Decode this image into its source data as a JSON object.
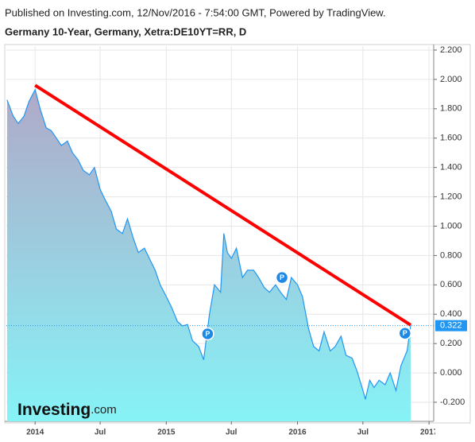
{
  "header": "Published on Investing.com, 12/Nov/2016 - 7:54:00 GMT, Powered by TradingView.",
  "chart_data": {
    "type": "area",
    "title": "Germany 10-Year, Germany, Xetra:DE10YT=RR, D",
    "color": "#2196f3",
    "x": [
      "2013-10-15",
      "2013-11-01",
      "2013-11-15",
      "2013-12-01",
      "2013-12-15",
      "2014-01-01",
      "2014-01-15",
      "2014-02-01",
      "2014-02-15",
      "2014-03-01",
      "2014-03-15",
      "2014-04-01",
      "2014-04-15",
      "2014-05-01",
      "2014-05-15",
      "2014-06-01",
      "2014-06-15",
      "2014-07-01",
      "2014-07-15",
      "2014-08-01",
      "2014-08-15",
      "2014-09-01",
      "2014-09-15",
      "2014-10-01",
      "2014-10-15",
      "2014-11-01",
      "2014-11-15",
      "2014-12-01",
      "2014-12-15",
      "2015-01-01",
      "2015-01-15",
      "2015-02-01",
      "2015-02-15",
      "2015-03-01",
      "2015-03-15",
      "2015-04-01",
      "2015-04-15",
      "2015-05-01",
      "2015-05-15",
      "2015-06-01",
      "2015-06-10",
      "2015-06-20",
      "2015-07-01",
      "2015-07-15",
      "2015-08-01",
      "2015-08-15",
      "2015-09-01",
      "2015-09-15",
      "2015-10-01",
      "2015-10-15",
      "2015-11-01",
      "2015-11-15",
      "2015-12-01",
      "2015-12-15",
      "2016-01-01",
      "2016-01-15",
      "2016-02-01",
      "2016-02-15",
      "2016-03-01",
      "2016-03-15",
      "2016-04-01",
      "2016-04-15",
      "2016-05-01",
      "2016-05-15",
      "2016-06-01",
      "2016-06-15",
      "2016-07-01",
      "2016-07-08",
      "2016-07-20",
      "2016-08-01",
      "2016-08-15",
      "2016-09-01",
      "2016-09-15",
      "2016-10-01",
      "2016-10-15",
      "2016-11-01",
      "2016-11-11"
    ],
    "values": [
      1.86,
      1.75,
      1.7,
      1.75,
      1.85,
      1.93,
      1.8,
      1.67,
      1.65,
      1.6,
      1.55,
      1.58,
      1.5,
      1.45,
      1.38,
      1.35,
      1.4,
      1.25,
      1.18,
      1.1,
      0.98,
      0.95,
      1.05,
      0.92,
      0.82,
      0.85,
      0.78,
      0.7,
      0.6,
      0.52,
      0.45,
      0.35,
      0.32,
      0.33,
      0.22,
      0.18,
      0.09,
      0.4,
      0.6,
      0.55,
      0.95,
      0.82,
      0.78,
      0.85,
      0.65,
      0.7,
      0.7,
      0.65,
      0.58,
      0.55,
      0.6,
      0.55,
      0.5,
      0.65,
      0.6,
      0.52,
      0.3,
      0.18,
      0.15,
      0.28,
      0.15,
      0.18,
      0.25,
      0.12,
      0.1,
      0.01,
      -0.12,
      -0.18,
      -0.05,
      -0.1,
      -0.05,
      -0.08,
      0.0,
      -0.12,
      0.05,
      0.15,
      0.322
    ],
    "xlim": [
      "2013-10-13",
      "2017-01-14"
    ],
    "xticks": [
      {
        "value": "2014-01-01",
        "label": "2014"
      },
      {
        "value": "2014-07-01",
        "label": "Jul"
      },
      {
        "value": "2015-01-01",
        "label": "2015"
      },
      {
        "value": "2015-07-01",
        "label": "Jul"
      },
      {
        "value": "2016-01-01",
        "label": "2016"
      },
      {
        "value": "2016-07-01",
        "label": "Jul"
      },
      {
        "value": "2017-01-01",
        "label": "2017"
      }
    ],
    "ylim": [
      -0.33,
      2.227
    ],
    "yticks": [
      {
        "value": -0.2,
        "label": "-0.200"
      },
      {
        "value": 0,
        "label": "0.000"
      },
      {
        "value": 0.2,
        "label": "0.200"
      },
      {
        "value": 0.4,
        "label": "0.400"
      },
      {
        "value": 0.6,
        "label": "0.600"
      },
      {
        "value": 0.8,
        "label": "0.800"
      },
      {
        "value": 1,
        "label": "1.000"
      },
      {
        "value": 1.2,
        "label": "1.200"
      },
      {
        "value": 1.4,
        "label": "1.400"
      },
      {
        "value": 1.6,
        "label": "1.600"
      },
      {
        "value": 1.8,
        "label": "1.800"
      },
      {
        "value": 2,
        "label": "2.000"
      },
      {
        "value": 2.2,
        "label": "2.200"
      }
    ],
    "grid": true,
    "trendline": {
      "x": [
        "2014-01-01",
        "2016-11-11"
      ],
      "values": [
        1.96,
        0.326
      ],
      "color": "#ff0000"
    },
    "annotations": [
      {
        "x": "2015-04-26",
        "value": 0.266,
        "label": "P"
      },
      {
        "x": "2015-11-19",
        "value": 0.65,
        "label": "P"
      },
      {
        "x": "2016-10-26",
        "value": 0.27,
        "label": "P"
      }
    ],
    "watermark": {
      "brand": "Investing",
      "suffix": ".com"
    }
  }
}
